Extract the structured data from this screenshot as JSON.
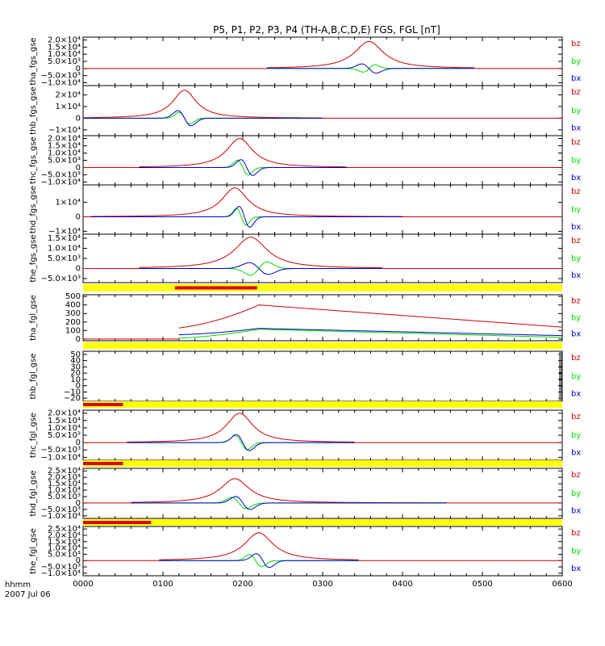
{
  "chart_data": {
    "type": "line",
    "title": "P5, P1, P2, P3, P4 (TH-A,B,C,D,E) FGS, FGL [nT]",
    "x_range": [
      0,
      6
    ],
    "x_ticks": [
      "0000",
      "0100",
      "0200",
      "0300",
      "0400",
      "0500",
      "0600"
    ],
    "footer": {
      "label_line1": "hhmm",
      "label_line2": "2007 Jul 06"
    },
    "colors": {
      "bz": "#cc0000",
      "by": "#00dd00",
      "bx": "#0000cc",
      "bar_yellow": "#ffff00",
      "bar_red": "#dd0000"
    },
    "panels": [
      {
        "ylabel": "tha_fgs_gse",
        "ylim": [
          -12000,
          22000
        ],
        "yticks": [
          "2.0×10⁴",
          "1.5×10⁴",
          "1.0×10⁴",
          "5.0×10³",
          "0",
          "−5.0×10³",
          "−1.0×10⁴"
        ],
        "ytick_values": [
          20000,
          15000,
          10000,
          5000,
          0,
          -5000,
          -10000
        ],
        "legend": [
          "bz",
          "by",
          "bx"
        ],
        "data_start": 2.3,
        "data_end": 4.9,
        "peak_t": 3.58,
        "bz": {
          "shape": "peak",
          "start": 2.3,
          "end": 4.9,
          "center": 3.58,
          "amplitude": 19000,
          "width": 0.22
        },
        "by": {
          "shape": "wiggle",
          "start": 2.3,
          "end": 4.9,
          "center": 3.58,
          "amplitude": 3500,
          "width": 0.1,
          "sign": 1
        },
        "bx": {
          "shape": "wiggle",
          "start": 2.3,
          "end": 4.9,
          "center": 3.58,
          "amplitude": 4500,
          "width": 0.12,
          "sign": -1
        }
      },
      {
        "ylabel": "thb_fgs_gse",
        "ylim": [
          -15000,
          28000
        ],
        "yticks": [
          "2×10⁴",
          "1×10⁴",
          "0",
          "−1×10⁴"
        ],
        "ytick_values": [
          20000,
          10000,
          0,
          -10000
        ],
        "legend": [
          "bz",
          "by",
          "bx"
        ],
        "data_start": 0.0,
        "data_end": 3.0,
        "bz": {
          "shape": "peak",
          "start": 0.0,
          "end": 3.0,
          "center": 1.27,
          "amplitude": 24000,
          "width": 0.18
        },
        "by": {
          "shape": "wiggle",
          "start": 0.0,
          "end": 3.0,
          "center": 1.27,
          "amplitude": 7000,
          "width": 0.09,
          "sign": -1
        },
        "bx": {
          "shape": "wiggle",
          "start": 0.0,
          "end": 3.0,
          "center": 1.27,
          "amplitude": 9000,
          "width": 0.11,
          "sign": -1
        }
      },
      {
        "ylabel": "thc_fgs_gse",
        "ylim": [
          -12000,
          22000
        ],
        "yticks": [
          "2.0×10⁴",
          "1.5×10⁴",
          "1.0×10⁴",
          "5.0×10³",
          "0",
          "−5.0×10³",
          "−1.0×10⁴"
        ],
        "ytick_values": [
          20000,
          15000,
          10000,
          5000,
          0,
          -5000,
          -10000
        ],
        "legend": [
          "bz",
          "by",
          "bx"
        ],
        "data_start": 0.7,
        "data_end": 3.3,
        "bz": {
          "shape": "peak",
          "start": 0.7,
          "end": 3.3,
          "center": 1.96,
          "amplitude": 20000,
          "width": 0.2
        },
        "by": {
          "shape": "wiggle",
          "start": 0.7,
          "end": 3.3,
          "center": 2.0,
          "amplitude": 7000,
          "width": 0.09,
          "sign": -1
        },
        "bx": {
          "shape": "wiggle",
          "start": 0.7,
          "end": 3.3,
          "center": 2.05,
          "amplitude": 7500,
          "width": 0.1,
          "sign": -1
        }
      },
      {
        "ylabel": "thd_fgs_gse",
        "ylim": [
          -12000,
          22000
        ],
        "yticks": [
          "1×10⁴",
          "0",
          "−1×10⁴"
        ],
        "ytick_values": [
          10000,
          0,
          -10000
        ],
        "legend": [
          "bz",
          "by",
          "bx"
        ],
        "data_start": 0.1,
        "data_end": 4.0,
        "bz": {
          "shape": "peak",
          "start": 0.1,
          "end": 4.0,
          "center": 1.9,
          "amplitude": 20000,
          "width": 0.2
        },
        "by": {
          "shape": "wiggle",
          "start": 0.1,
          "end": 4.0,
          "center": 1.98,
          "amplitude": 8000,
          "width": 0.08,
          "sign": -1
        },
        "bx": {
          "shape": "wiggle",
          "start": 0.1,
          "end": 4.0,
          "center": 2.02,
          "amplitude": 10000,
          "width": 0.09,
          "sign": -1
        }
      },
      {
        "ylabel": "the_fgs_gse",
        "ylim": [
          -7000,
          17000
        ],
        "yticks": [
          "1.5×10⁴",
          "1.0×10⁴",
          "5.0×10³",
          "0",
          "−5.0×10³"
        ],
        "ytick_values": [
          15000,
          10000,
          5000,
          0,
          -5000
        ],
        "legend": [
          "bz",
          "by",
          "bx"
        ],
        "data_start": 0.7,
        "data_end": 3.75,
        "bz": {
          "shape": "peak",
          "start": 0.7,
          "end": 3.75,
          "center": 2.1,
          "amplitude": 15500,
          "width": 0.25
        },
        "by": {
          "shape": "wiggle",
          "start": 0.7,
          "end": 3.75,
          "center": 2.2,
          "amplitude": 4500,
          "width": 0.14,
          "sign": 1
        },
        "bx": {
          "shape": "wiggle",
          "start": 0.7,
          "end": 3.75,
          "center": 2.2,
          "amplitude": 4000,
          "width": 0.16,
          "sign": -1
        }
      },
      {
        "ylabel": "tha_fgl_gse",
        "ylim": [
          -20,
          520
        ],
        "yticks": [
          "500",
          "400",
          "300",
          "200",
          "100",
          "0"
        ],
        "ytick_values": [
          500,
          400,
          300,
          200,
          100,
          0
        ],
        "legend": [
          "bz",
          "by",
          "bx"
        ],
        "data_start": 1.2,
        "data_end": 6.0,
        "bz": {
          "shape": "ramp",
          "start": 1.2,
          "end": 6.0,
          "center": 2.2,
          "v0": 130,
          "vpeak": 400,
          "vend": 140
        },
        "by": {
          "shape": "ramp",
          "start": 1.2,
          "end": 6.0,
          "center": 2.2,
          "v0": 10,
          "vpeak": 115,
          "vend": 20
        },
        "bx": {
          "shape": "ramp",
          "start": 1.2,
          "end": 6.0,
          "center": 2.2,
          "v0": 50,
          "vpeak": 125,
          "vend": 40
        }
      },
      {
        "ylabel": "thb_fgl_gse",
        "ylim": [
          -25,
          55
        ],
        "yticks": [
          "50",
          "40",
          "30",
          "20",
          "10",
          "0",
          "−10",
          "−20"
        ],
        "ytick_values": [
          50,
          40,
          30,
          20,
          10,
          0,
          -10,
          -20
        ],
        "legend": [
          "bz",
          "by",
          "bx"
        ],
        "data_start": null,
        "data_end": null
      },
      {
        "ylabel": "thc_fgl_gse",
        "ylim": [
          -12000,
          22000
        ],
        "yticks": [
          "2.0×10⁴",
          "1.5×10⁴",
          "1.0×10⁴",
          "5.0×10³",
          "0",
          "−5.0×10³",
          "−1.0×10⁴"
        ],
        "ytick_values": [
          20000,
          15000,
          10000,
          5000,
          0,
          -5000,
          -10000
        ],
        "legend": [
          "bz",
          "by",
          "bx"
        ],
        "data_start": 0.55,
        "data_end": 3.4,
        "bz": {
          "shape": "peak",
          "start": 0.55,
          "end": 3.4,
          "center": 1.96,
          "amplitude": 20000,
          "width": 0.2
        },
        "by": {
          "shape": "wiggle",
          "start": 0.55,
          "end": 3.4,
          "center": 1.98,
          "amplitude": 6500,
          "width": 0.1,
          "sign": -1
        },
        "bx": {
          "shape": "wiggle",
          "start": 0.55,
          "end": 3.4,
          "center": 2.0,
          "amplitude": 7500,
          "width": 0.11,
          "sign": -1
        }
      },
      {
        "ylabel": "thd_fgl_gse",
        "ylim": [
          -12000,
          27000
        ],
        "yticks": [
          "2.5×10⁴",
          "2.0×10⁴",
          "1.5×10⁴",
          "1.0×10⁴",
          "5.0×10³",
          "0",
          "−5.0×10³",
          "−1.0×10⁴"
        ],
        "ytick_values": [
          25000,
          20000,
          15000,
          10000,
          5000,
          0,
          -5000,
          -10000
        ],
        "legend": [
          "bz",
          "by",
          "bx"
        ],
        "data_start": 0.6,
        "data_end": 4.55,
        "bz": {
          "shape": "peak",
          "start": 0.6,
          "end": 4.55,
          "center": 1.9,
          "amplitude": 19000,
          "width": 0.22
        },
        "by": {
          "shape": "wiggle",
          "start": 0.6,
          "end": 4.55,
          "center": 1.95,
          "amplitude": 6000,
          "width": 0.12,
          "sign": -1
        },
        "bx": {
          "shape": "wiggle",
          "start": 0.6,
          "end": 4.55,
          "center": 2.0,
          "amplitude": 7000,
          "width": 0.12,
          "sign": -1
        }
      },
      {
        "ylabel": "the_fgl_gse",
        "ylim": [
          -12000,
          27000
        ],
        "yticks": [
          "2.5×10⁴",
          "2.0×10⁴",
          "1.5×10⁴",
          "1.0×10⁴",
          "5.0×10³",
          "0",
          "−5.0×10³",
          "−1.0×10⁴"
        ],
        "ytick_values": [
          25000,
          20000,
          15000,
          10000,
          5000,
          0,
          -5000,
          -10000
        ],
        "legend": [
          "bz",
          "by",
          "bx"
        ],
        "data_start": 0.95,
        "data_end": 3.45,
        "bz": {
          "shape": "peak",
          "start": 0.95,
          "end": 3.45,
          "center": 2.2,
          "amplitude": 22000,
          "width": 0.22
        },
        "by": {
          "shape": "wiggle",
          "start": 0.95,
          "end": 3.45,
          "center": 2.16,
          "amplitude": 6500,
          "width": 0.1,
          "sign": -1
        },
        "bx": {
          "shape": "wiggle",
          "start": 0.95,
          "end": 3.45,
          "center": 2.25,
          "amplitude": 7500,
          "width": 0.11,
          "sign": -1
        }
      }
    ],
    "status_bars": [
      {
        "after_panel": 4,
        "red_start": 1.15,
        "red_end": 2.18
      },
      {
        "after_panel": 5,
        "red_start": null,
        "red_end": null
      },
      {
        "after_panel": 6,
        "red_start": 0.0,
        "red_end": 0.5
      },
      {
        "after_panel": 7,
        "red_start": 0.0,
        "red_end": 0.5
      },
      {
        "after_panel": 8,
        "red_start": 0.0,
        "red_end": 0.85
      }
    ]
  }
}
